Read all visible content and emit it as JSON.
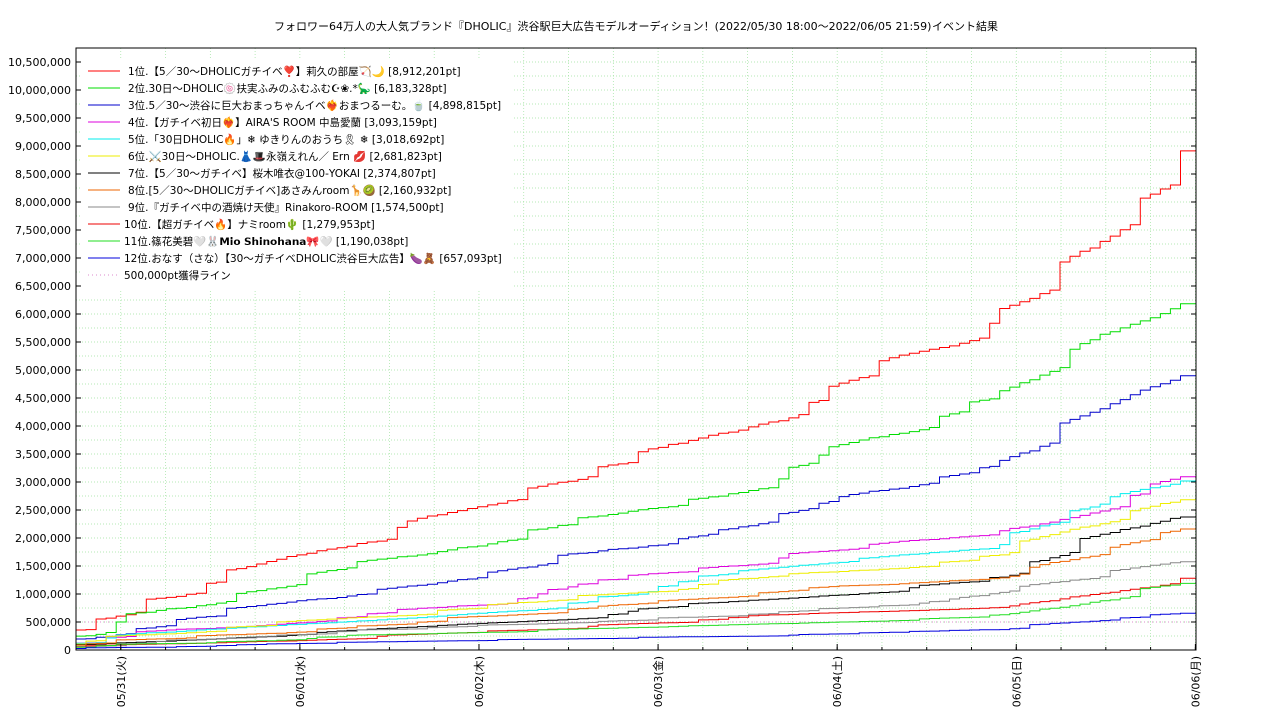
{
  "chart_data": {
    "type": "line",
    "title": "フォロワー64万人の大人気ブランド『DHOLIC』渋谷駅巨大広告モデルオーディション！(2022/05/30 18:00〜2022/06/05 21:59)",
    "title_suffix": "イベント結果",
    "x_range": [
      "2022-05-30T18:00",
      "2022-06-06T00:05"
    ],
    "x_ticks": [
      {
        "x": "2022-05-31T00:00",
        "label": "05/31(火)"
      },
      {
        "x": "2022-06-01T00:00",
        "label": "06/01(水)"
      },
      {
        "x": "2022-06-02T00:00",
        "label": "06/02(木)"
      },
      {
        "x": "2022-06-03T00:00",
        "label": "06/03(金)"
      },
      {
        "x": "2022-06-04T00:00",
        "label": "06/04(土)"
      },
      {
        "x": "2022-06-05T00:00",
        "label": "06/05(日)"
      },
      {
        "x": "2022-06-06T00:00",
        "label": "06/06(月)"
      }
    ],
    "ylim": [
      0,
      10750000
    ],
    "y_ticks": [
      0,
      500000,
      1000000,
      1500000,
      2000000,
      2500000,
      3000000,
      3500000,
      4000000,
      4500000,
      5000000,
      5500000,
      6000000,
      6500000,
      7000000,
      7500000,
      8000000,
      8500000,
      9000000,
      9500000,
      10000000,
      10500000
    ],
    "y_tick_labels": [
      "0",
      "500,000",
      "1,000,000",
      "1,500,000",
      "2,000,000",
      "2,500,000",
      "3,000,000",
      "3,500,000",
      "4,000,000",
      "4,500,000",
      "5,000,000",
      "5,500,000",
      "6,000,000",
      "6,500,000",
      "7,000,000",
      "7,500,000",
      "8,000,000",
      "8,500,000",
      "9,000,000",
      "9,500,000",
      "10,000,000",
      "10,500,000"
    ],
    "grid": true,
    "legend_position": "top-left",
    "threshold": {
      "name": "500,000pt獲得ライン",
      "value": 500000,
      "color": "#dd88cc"
    },
    "series": [
      {
        "name": "1位.【5／30〜DHOLICガチイベ❣️】莉久の部屋🏹🌙 [8,912,201pt]",
        "color": "#ff0000",
        "final": 8912201
      },
      {
        "name": "2位.30日〜DHOLIC🍥扶実ふみのふむふむ☪︎❀.*🦕 [6,183,328pt]",
        "color": "#00dd00",
        "final": 6183328
      },
      {
        "name": "3位.5／30〜渋谷に巨大おまっちゃんイベ❤️‍🔥おまつるーむ。🍵 [4,898,815pt]",
        "color": "#0000cc",
        "final": 4898815
      },
      {
        "name": "4位.【ガチイベ初日❤️‍🔥】AIRA'S ROOM 中島愛蘭 [3,093,159pt]",
        "color": "#dd00dd",
        "final": 3093159
      },
      {
        "name": "5位.「30日DHOLIC🔥」❄︎ ゆきりんのおうち🎗 ❄︎ [3,018,692pt]",
        "color": "#00eeee",
        "final": 3018692
      },
      {
        "name": "6位.⚔️30日〜DHOLIC.👗🎩永嶺えれん／ Ern 💋 [2,681,823pt]",
        "color": "#eeee00",
        "final": 2681823
      },
      {
        "name": "7位.【5／30〜ガチイベ】桜木唯衣@100-YOKAI [2,374,807pt]",
        "color": "#000000",
        "final": 2374807
      },
      {
        "name": "8位.[5／30〜DHOLICガチイベ]あさみんroom🦒🥝 [2,160,932pt]",
        "color": "#ee6600",
        "final": 2160932
      },
      {
        "name": "9位.『ガチイベ中の酒焼け天使』Rinakoro-ROOM [1,574,500pt]",
        "color": "#888888",
        "final": 1574500
      },
      {
        "name": "10位.【超ガチイベ🔥】ナミroom🌵 [1,279,953pt]",
        "color": "#ee0000",
        "final": 1279953
      },
      {
        "name": "11位.篠花美碧🤍🐰𝗠𝗶𝗼 𝗦𝗵𝗶𝗻𝗼𝗵𝗮𝗻𝗮🎀🤍 [1,190,038pt]",
        "color": "#22dd22",
        "final": 1190038
      },
      {
        "name": "12位.おなす（さな）【30〜ガチイベDHOLIC渋谷巨大広告】🍆🧸 [657,093pt]",
        "color": "#0000dd",
        "final": 657093
      }
    ]
  }
}
